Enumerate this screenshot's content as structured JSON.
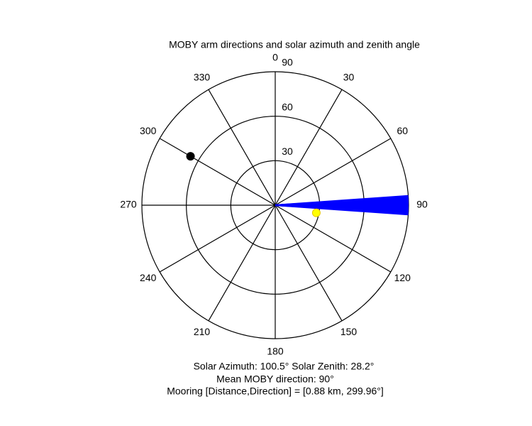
{
  "chart_data": {
    "type": "polar",
    "title": "MOBY arm directions and solar azimuth and zenith angle",
    "rlim": [
      0,
      90
    ],
    "rticks": [
      30,
      60,
      90
    ],
    "angle_ticks": [
      0,
      30,
      60,
      90,
      120,
      150,
      180,
      210,
      240,
      270,
      300,
      330
    ],
    "arm_directions": {
      "color": "#0000ff",
      "radius": 90,
      "values": [
        86,
        86.5,
        87,
        87.5,
        88,
        88.5,
        89,
        89.5,
        90,
        90.5,
        91,
        91.5,
        92,
        92.5,
        93,
        93.5,
        94
      ]
    },
    "solar": {
      "color": "#ffff00",
      "azimuth": 100.5,
      "zenith": 28.2
    },
    "mooring": {
      "color": "#000000",
      "direction": 299.96,
      "radius": 66
    },
    "annotations": [
      "Solar Azimuth: 100.5°   Solar Zenith: 28.2°",
      "Mean MOBY direction: 90°",
      "Mooring [Distance,Direction] = [0.88 km, 299.96°]"
    ]
  }
}
